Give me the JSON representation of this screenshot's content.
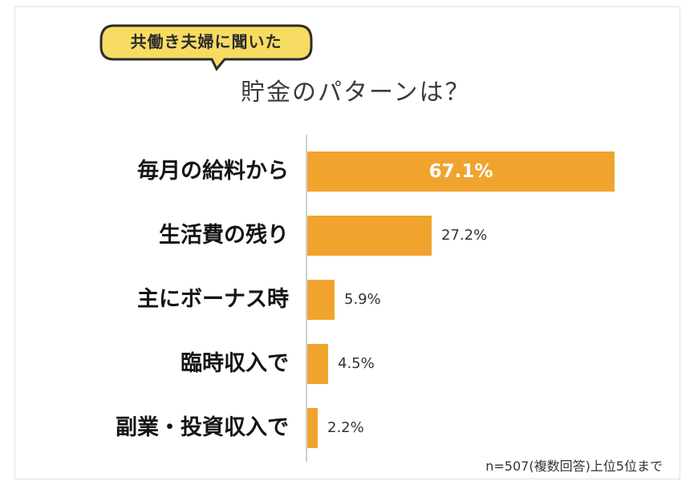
{
  "badge": {
    "label": "共働き夫婦に聞いた"
  },
  "title": "貯金のパターンは？",
  "footnote": "n=507(複数回答)上位5位まで",
  "colors": {
    "bar": "#f0a42e",
    "badge": "#f7dc63",
    "badge_outline": "#2b2b2b"
  },
  "chart_data": {
    "type": "bar",
    "orientation": "horizontal",
    "categories": [
      "毎月の給料から",
      "生活費の残り",
      "主にボーナス時",
      "臨時収入で",
      "副業・投資収入で"
    ],
    "values": [
      67.1,
      27.2,
      5.9,
      4.5,
      2.2
    ],
    "value_labels": [
      "67.1%",
      "27.2%",
      "5.9%",
      "4.5%",
      "2.2%"
    ],
    "unit": "%",
    "xlim": [
      0,
      100
    ],
    "grid": false
  }
}
